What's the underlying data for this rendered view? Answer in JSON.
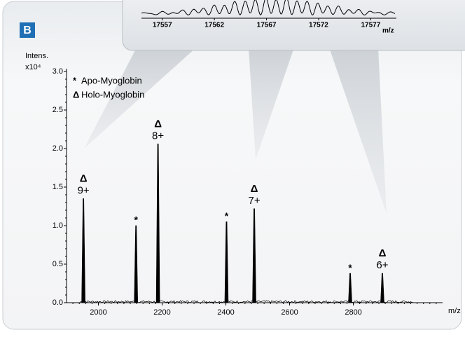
{
  "chart_data": [
    {
      "type": "spectrum",
      "panel_label": "B",
      "ylabel": "Intens.",
      "ylabel_multiplier": "x10⁴",
      "xlabel": "m/z",
      "xlim": [
        1900,
        3080
      ],
      "xticks": [
        2000,
        2200,
        2400,
        2600,
        2800
      ],
      "ylim": [
        0,
        3.0
      ],
      "yticks": [
        {
          "value": 0,
          "label": "0.0"
        },
        0.5,
        {
          "value": 1,
          "label": "1.0"
        },
        1.5,
        {
          "value": 2,
          "label": "2.0"
        },
        2.5,
        {
          "value": 3,
          "label": "3.0"
        }
      ],
      "series": [
        {
          "name": "Apo-Myoglobin",
          "symbol": "*",
          "color": "#000000",
          "x": [
            2118,
            2402,
            2790
          ],
          "values": [
            1.0,
            1.05,
            0.38
          ]
        },
        {
          "name": "Holo-Myoglobin",
          "symbol": "Δ",
          "color": "#000000",
          "x": [
            1953,
            2187,
            2489,
            2891
          ],
          "values": [
            1.35,
            2.06,
            1.22,
            0.38
          ],
          "value_labels": [
            "9+",
            "8+",
            "7+",
            "6+"
          ]
        }
      ]
    },
    {
      "type": "spectrum-inset",
      "xlabel": "m/z",
      "xlim": [
        17555,
        17580
      ],
      "xticks": [
        17557,
        17562,
        17567,
        17572,
        17577
      ]
    }
  ]
}
